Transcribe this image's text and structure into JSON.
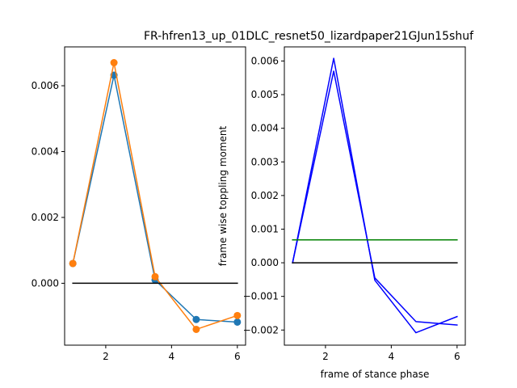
{
  "title": "FR-hfren13_up_01DLC_resnet50_lizardpaper21GJun15shuf",
  "chart_data": [
    {
      "type": "line",
      "title": "",
      "xlabel": "",
      "ylabel": "",
      "xlim": [
        0.75,
        6.25
      ],
      "ylim": [
        -0.00188,
        0.00718
      ],
      "xticks": [
        2,
        4,
        6
      ],
      "xtick_labels": [
        "2",
        "4",
        "6"
      ],
      "yticks": [
        0.0,
        0.002,
        0.004,
        0.006
      ],
      "ytick_labels": [
        "0.000",
        "0.002",
        "0.004",
        "0.006"
      ],
      "grid": false,
      "series": [
        {
          "color": "#1f77b4",
          "marker": "circle",
          "x": [
            1,
            2.25,
            3.5,
            4.75,
            6
          ],
          "y": [
            0.0006,
            0.00632,
            0.0001,
            -0.0011,
            -0.00118
          ]
        },
        {
          "color": "#ff7f0e",
          "marker": "circle",
          "x": [
            1,
            2.25,
            3.5,
            4.75,
            6
          ],
          "y": [
            0.0006,
            0.0067,
            0.0002,
            -0.0014,
            -0.00098
          ]
        },
        {
          "color": "#000000",
          "marker": "none",
          "x": [
            1,
            6
          ],
          "y": [
            0.0,
            0.0
          ]
        }
      ]
    },
    {
      "type": "line",
      "title": "",
      "xlabel": "frame of stance phase",
      "ylabel": "frame wise toppling moment",
      "xlim": [
        0.75,
        6.25
      ],
      "ylim": [
        -0.00245,
        0.00642
      ],
      "xticks": [
        2,
        4,
        6
      ],
      "xtick_labels": [
        "2",
        "4",
        "6"
      ],
      "yticks": [
        -0.002,
        -0.001,
        0.0,
        0.001,
        0.002,
        0.003,
        0.004,
        0.005,
        0.006
      ],
      "ytick_labels": [
        "−0.002",
        "−0.001",
        "0.000",
        "0.001",
        "0.002",
        "0.003",
        "0.004",
        "0.005",
        "0.006"
      ],
      "grid": false,
      "series": [
        {
          "color": "#0000ff",
          "marker": "none",
          "x": [
            1,
            2.25,
            3.5,
            4.75,
            6
          ],
          "y": [
            0.0,
            0.0057,
            -0.00045,
            -0.00175,
            -0.00185
          ]
        },
        {
          "color": "#0000ff",
          "marker": "none",
          "x": [
            1,
            2.25,
            3.5,
            4.75,
            6
          ],
          "y": [
            0.0,
            0.00608,
            -0.00052,
            -0.00208,
            -0.0016
          ]
        },
        {
          "color": "#008000",
          "marker": "none",
          "x": [
            1,
            6
          ],
          "y": [
            0.00068,
            0.00068
          ]
        },
        {
          "color": "#000000",
          "marker": "none",
          "x": [
            1,
            6
          ],
          "y": [
            0.0,
            0.0
          ]
        }
      ]
    }
  ]
}
